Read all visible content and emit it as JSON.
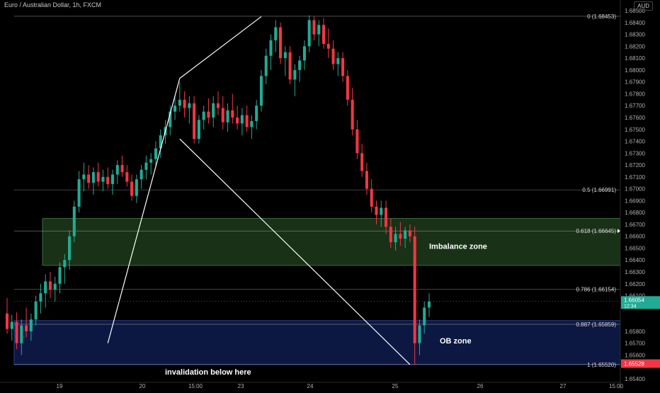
{
  "header": {
    "title": "Euro / Australian Dollar, 1h, FXCM",
    "currency": "AUD"
  },
  "price_axis": {
    "ticks": [
      1.685,
      1.684,
      1.683,
      1.682,
      1.681,
      1.68,
      1.679,
      1.678,
      1.677,
      1.676,
      1.675,
      1.674,
      1.673,
      1.672,
      1.671,
      1.67,
      1.669,
      1.668,
      1.667,
      1.666,
      1.665,
      1.664,
      1.663,
      1.662,
      1.661,
      1.658,
      1.657,
      1.656,
      1.654
    ],
    "tick_labels": [
      "1.68500",
      "1.68400",
      "1.68300",
      "1.68200",
      "1.68100",
      "1.68000",
      "1.67900",
      "1.67800",
      "1.67700",
      "1.67600",
      "1.67500",
      "1.67400",
      "1.67300",
      "1.67200",
      "1.67100",
      "1.67000",
      "1.66900",
      "1.66800",
      "1.66700",
      "1.66600",
      "1.66500",
      "1.66400",
      "1.66300",
      "1.66200",
      "1.66100",
      "1.65800",
      "1.65700",
      "1.65600",
      "1.65400"
    ],
    "current_price_label": "1.66054",
    "current_timer_label": "12:34",
    "low_price_label": "1.65528",
    "ylim": [
      1.6537,
      1.6853
    ]
  },
  "time_axis": {
    "labels": [
      "19",
      "20",
      "15:00",
      "23",
      "24",
      "25",
      "26",
      "27",
      "15:00"
    ]
  },
  "fibonacci": [
    {
      "level": "0",
      "price": 1.68453,
      "label": "0 (1.68453)"
    },
    {
      "level": "0.5",
      "price": 1.66991,
      "label": "0.5 (1.66991)"
    },
    {
      "level": "0.618",
      "price": 1.66645,
      "label": "0.618 (1.66645)"
    },
    {
      "level": "0.786",
      "price": 1.66154,
      "label": "0.786 (1.66154)"
    },
    {
      "level": "0.887",
      "price": 1.65859,
      "label": "0.887 (1.65859)"
    },
    {
      "level": "1",
      "price": 1.6552,
      "label": "1 (1.65520)"
    }
  ],
  "zones": [
    {
      "name": "Imbalance zone",
      "label": "Imbalance zone",
      "top": 1.6675,
      "bottom": 1.66355,
      "fill": "#1d3a1a",
      "stroke": "#3a6d3a"
    },
    {
      "name": "OB zone",
      "label": "OB zone",
      "top": 1.6589,
      "bottom": 1.6552,
      "fill": "#0f1c4d",
      "stroke": "#2a3f8f"
    }
  ],
  "annotations": {
    "invalidation": "invalidation below here"
  },
  "colors": {
    "up": "#22ab94",
    "down": "#f23645",
    "fib_line": "#b8b8b8",
    "trend_line": "#ffffff",
    "current_price_bg": "#22ab94",
    "low_price_bg": "#f23645"
  },
  "chart_data": {
    "type": "candlestick",
    "title": "Euro / Australian Dollar, 1h, FXCM",
    "x_ticks": [
      "19",
      "20",
      "15:00",
      "23",
      "24",
      "25",
      "26",
      "27",
      "15:00"
    ],
    "ylim": [
      1.6537,
      1.6853
    ],
    "candles": [
      [
        1.6595,
        1.6608,
        1.6578,
        1.6582
      ],
      [
        1.6582,
        1.6594,
        1.6572,
        1.6588
      ],
      [
        1.6588,
        1.6596,
        1.6565,
        1.657
      ],
      [
        1.657,
        1.659,
        1.656,
        1.6585
      ],
      [
        1.6585,
        1.66,
        1.6575,
        1.658
      ],
      [
        1.658,
        1.6595,
        1.6572,
        1.659
      ],
      [
        1.659,
        1.661,
        1.6585,
        1.6605
      ],
      [
        1.6605,
        1.662,
        1.6595,
        1.6612
      ],
      [
        1.6612,
        1.6628,
        1.66,
        1.6622
      ],
      [
        1.6622,
        1.663,
        1.6608,
        1.6615
      ],
      [
        1.6615,
        1.6626,
        1.6605,
        1.662
      ],
      [
        1.662,
        1.6638,
        1.6612,
        1.6634
      ],
      [
        1.6634,
        1.6645,
        1.662,
        1.664
      ],
      [
        1.664,
        1.6665,
        1.6632,
        1.666
      ],
      [
        1.666,
        1.669,
        1.6655,
        1.6685
      ],
      [
        1.6685,
        1.6715,
        1.668,
        1.6708
      ],
      [
        1.6708,
        1.6722,
        1.6698,
        1.6712
      ],
      [
        1.6712,
        1.672,
        1.67,
        1.6705
      ],
      [
        1.6705,
        1.6718,
        1.6695,
        1.6714
      ],
      [
        1.6714,
        1.6722,
        1.6702,
        1.6706
      ],
      [
        1.6706,
        1.6716,
        1.6698,
        1.671
      ],
      [
        1.671,
        1.6718,
        1.67,
        1.6704
      ],
      [
        1.6704,
        1.6716,
        1.6695,
        1.6712
      ],
      [
        1.6712,
        1.6724,
        1.6704,
        1.672
      ],
      [
        1.672,
        1.6728,
        1.671,
        1.6714
      ],
      [
        1.6714,
        1.672,
        1.6702,
        1.6706
      ],
      [
        1.6706,
        1.6712,
        1.669,
        1.6694
      ],
      [
        1.6694,
        1.6712,
        1.6688,
        1.6708
      ],
      [
        1.6708,
        1.672,
        1.67,
        1.6716
      ],
      [
        1.6716,
        1.6728,
        1.6708,
        1.6722
      ],
      [
        1.6722,
        1.673,
        1.6712,
        1.6725
      ],
      [
        1.6725,
        1.674,
        1.6718,
        1.6734
      ],
      [
        1.6734,
        1.675,
        1.6726,
        1.6745
      ],
      [
        1.6745,
        1.6758,
        1.6738,
        1.6752
      ],
      [
        1.6752,
        1.677,
        1.6745,
        1.6765
      ],
      [
        1.6765,
        1.6778,
        1.6758,
        1.677
      ],
      [
        1.677,
        1.679,
        1.6765,
        1.6775
      ],
      [
        1.6775,
        1.6782,
        1.676,
        1.6768
      ],
      [
        1.6768,
        1.6778,
        1.6755,
        1.6772
      ],
      [
        1.6772,
        1.6778,
        1.6738,
        1.6742
      ],
      [
        1.6742,
        1.6762,
        1.6738,
        1.6758
      ],
      [
        1.6758,
        1.677,
        1.675,
        1.6765
      ],
      [
        1.6765,
        1.6776,
        1.6755,
        1.676
      ],
      [
        1.676,
        1.6778,
        1.6752,
        1.6772
      ],
      [
        1.6772,
        1.6782,
        1.6762,
        1.6768
      ],
      [
        1.6768,
        1.6778,
        1.675,
        1.6756
      ],
      [
        1.6756,
        1.6772,
        1.6748,
        1.6766
      ],
      [
        1.6766,
        1.678,
        1.6755,
        1.676
      ],
      [
        1.676,
        1.677,
        1.675,
        1.6755
      ],
      [
        1.6755,
        1.6768,
        1.6745,
        1.6762
      ],
      [
        1.6762,
        1.677,
        1.6748,
        1.6752
      ],
      [
        1.6752,
        1.6762,
        1.6742,
        1.6757
      ],
      [
        1.6757,
        1.6775,
        1.675,
        1.677
      ],
      [
        1.677,
        1.68,
        1.6765,
        1.6795
      ],
      [
        1.6795,
        1.6818,
        1.6788,
        1.6812
      ],
      [
        1.6812,
        1.683,
        1.68,
        1.6825
      ],
      [
        1.6825,
        1.6842,
        1.6815,
        1.6836
      ],
      [
        1.6836,
        1.684,
        1.6805,
        1.681
      ],
      [
        1.681,
        1.682,
        1.6795,
        1.6815
      ],
      [
        1.6815,
        1.682,
        1.6788,
        1.6792
      ],
      [
        1.6792,
        1.6805,
        1.6778,
        1.68
      ],
      [
        1.68,
        1.6812,
        1.679,
        1.6808
      ],
      [
        1.6808,
        1.6825,
        1.68,
        1.682
      ],
      [
        1.682,
        1.6846,
        1.6815,
        1.6842
      ],
      [
        1.6842,
        1.6845,
        1.6825,
        1.683
      ],
      [
        1.683,
        1.6842,
        1.682,
        1.6838
      ],
      [
        1.6838,
        1.6844,
        1.6818,
        1.6822
      ],
      [
        1.6822,
        1.6835,
        1.681,
        1.6818
      ],
      [
        1.6818,
        1.6825,
        1.68,
        1.6805
      ],
      [
        1.6805,
        1.6815,
        1.6795,
        1.681
      ],
      [
        1.681,
        1.6815,
        1.679,
        1.6795
      ],
      [
        1.6795,
        1.68,
        1.677,
        1.6775
      ],
      [
        1.6775,
        1.6785,
        1.6745,
        1.675
      ],
      [
        1.675,
        1.6758,
        1.6725,
        1.673
      ],
      [
        1.673,
        1.6738,
        1.671,
        1.6715
      ],
      [
        1.6715,
        1.6722,
        1.6695,
        1.67
      ],
      [
        1.67,
        1.6708,
        1.668,
        1.6685
      ],
      [
        1.6685,
        1.669,
        1.667,
        1.6678
      ],
      [
        1.6678,
        1.669,
        1.6668,
        1.6684
      ],
      [
        1.6684,
        1.669,
        1.6662,
        1.6668
      ],
      [
        1.6668,
        1.6675,
        1.665,
        1.6655
      ],
      [
        1.6655,
        1.6668,
        1.6648,
        1.6662
      ],
      [
        1.6662,
        1.6672,
        1.6652,
        1.6658
      ],
      [
        1.6658,
        1.6668,
        1.665,
        1.6665
      ],
      [
        1.6665,
        1.667,
        1.6655,
        1.666
      ],
      [
        1.666,
        1.6668,
        1.6552,
        1.657
      ],
      [
        1.657,
        1.659,
        1.656,
        1.6585
      ],
      [
        1.6585,
        1.6605,
        1.6578,
        1.66
      ],
      [
        1.66,
        1.6612,
        1.6592,
        1.6605
      ]
    ],
    "trend_lines": [
      {
        "from": [
          21,
          1.657
        ],
        "to": [
          36,
          1.6793
        ]
      },
      {
        "from": [
          36,
          1.6793
        ],
        "to": [
          53,
          1.6845
        ]
      },
      {
        "from": [
          36,
          1.6742
        ],
        "to": [
          84,
          1.6552
        ]
      }
    ]
  }
}
